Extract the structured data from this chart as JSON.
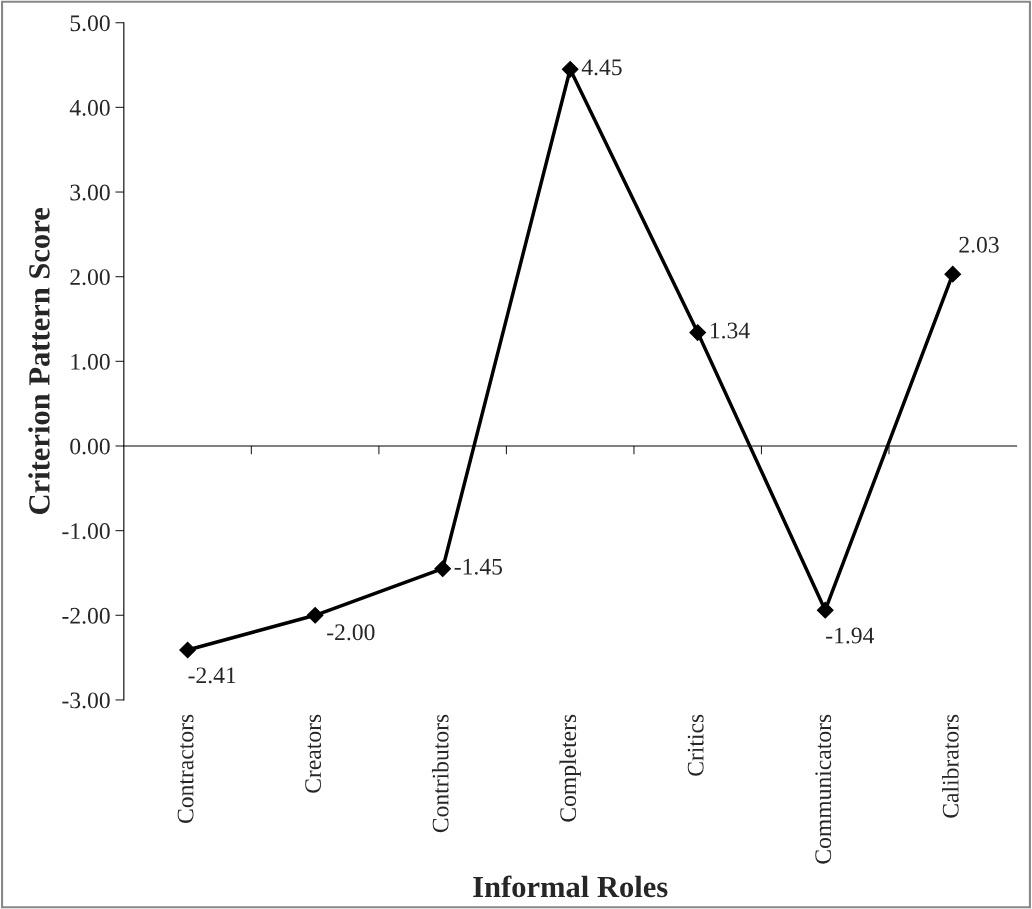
{
  "chart_data": {
    "type": "line",
    "xlabel": "Informal Roles",
    "ylabel": "Criterion Pattern Score",
    "categories": [
      "Contractors",
      "Creators",
      "Contributors",
      "Completers",
      "Critics",
      "Communicators",
      "Calibrators"
    ],
    "series": [
      {
        "color": "#000000",
        "values": [
          -2.41,
          -2.0,
          -1.45,
          4.45,
          1.34,
          -1.94,
          2.03
        ]
      }
    ],
    "ylim": [
      -3,
      5
    ],
    "yticks": [
      {
        "value": -3,
        "label": "-3.00"
      },
      {
        "value": -2,
        "label": "-2.00"
      },
      {
        "value": -1,
        "label": "-1.00"
      },
      {
        "value": 0,
        "label": "0.00"
      },
      {
        "value": 1,
        "label": "1.00"
      },
      {
        "value": 2,
        "label": "2.00"
      },
      {
        "value": 3,
        "label": "3.00"
      },
      {
        "value": 4,
        "label": "4.00"
      },
      {
        "value": 5,
        "label": "5.00"
      }
    ],
    "value_labels": [
      "-2.41",
      "-2.00",
      "-1.45",
      "4.45",
      "1.34",
      "-1.94",
      "2.03"
    ],
    "marker": "diamond",
    "line_style": "solid"
  }
}
